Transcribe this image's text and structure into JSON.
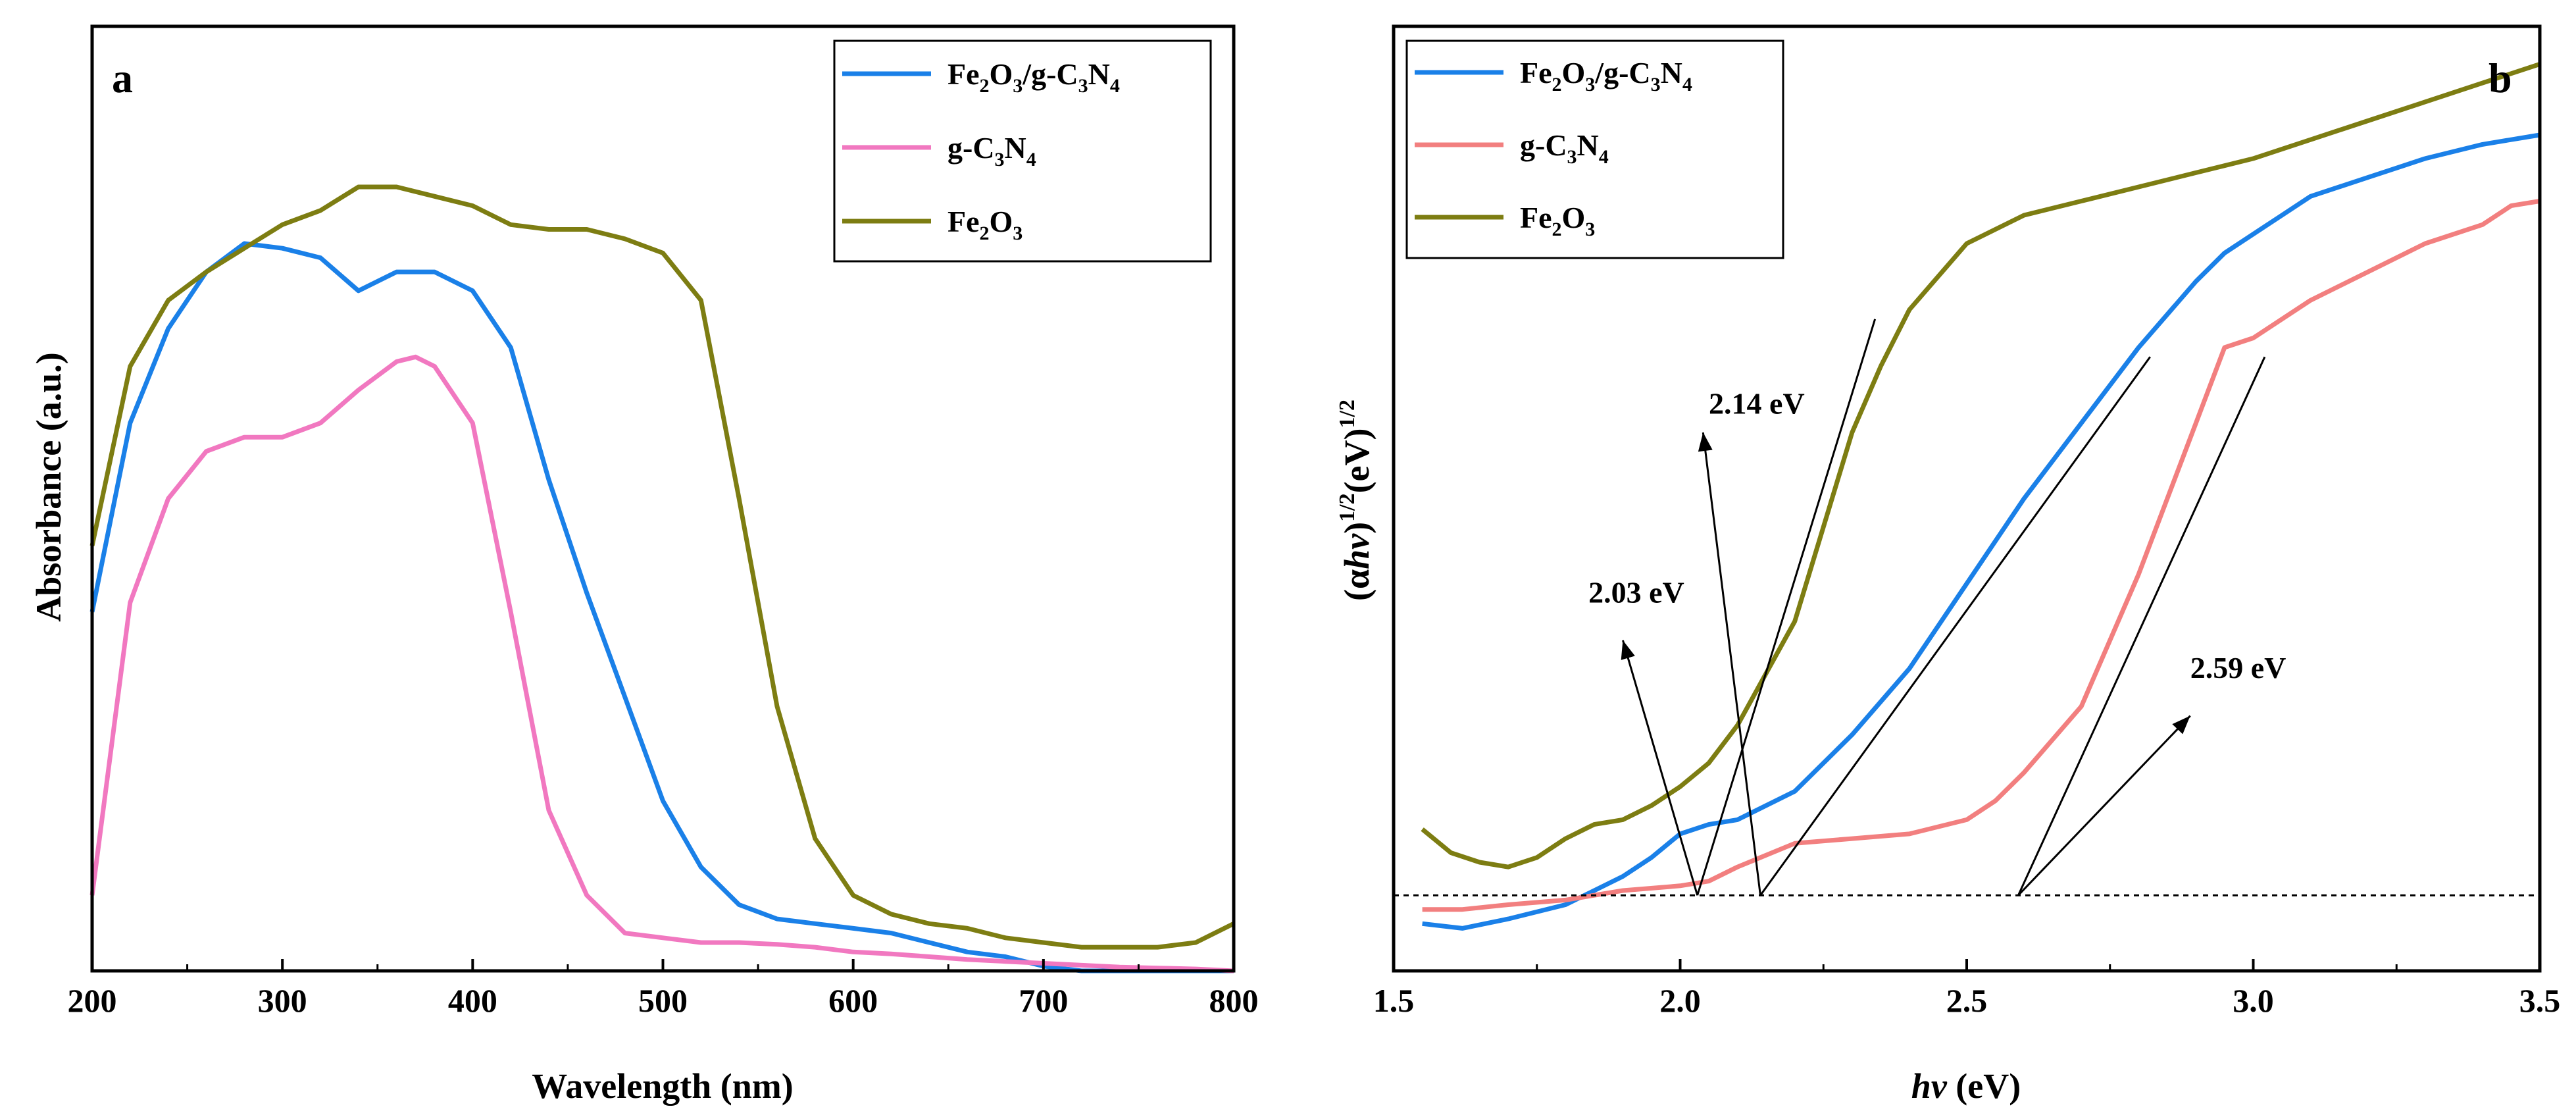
{
  "chart_data": [
    {
      "type": "line",
      "panel_label": "a",
      "xlabel": "Wavelength (nm)",
      "ylabel": "Absorbance (a.u.)",
      "xlim": [
        200,
        800
      ],
      "ylim": [
        0,
        1
      ],
      "xticks": [
        "200",
        "300",
        "400",
        "500",
        "600",
        "700",
        "800"
      ],
      "legend_position": "top-right",
      "series": [
        {
          "name": "Fe2O3/g-C3N4",
          "legend_parts": [
            {
              "t": "Fe"
            },
            {
              "t": "2",
              "sub": true
            },
            {
              "t": "O"
            },
            {
              "t": "3",
              "sub": true
            },
            {
              "t": "/g-C"
            },
            {
              "t": "3",
              "sub": true
            },
            {
              "t": "N"
            },
            {
              "t": "4",
              "sub": true
            }
          ],
          "color": "#1a80e8",
          "x": [
            200,
            220,
            240,
            260,
            280,
            300,
            320,
            340,
            360,
            380,
            400,
            420,
            440,
            460,
            480,
            500,
            520,
            540,
            560,
            580,
            600,
            620,
            640,
            660,
            680,
            700,
            720,
            740,
            760,
            780,
            800
          ],
          "y": [
            0.38,
            0.58,
            0.68,
            0.74,
            0.77,
            0.765,
            0.755,
            0.72,
            0.74,
            0.74,
            0.72,
            0.66,
            0.52,
            0.4,
            0.29,
            0.18,
            0.11,
            0.07,
            0.055,
            0.05,
            0.045,
            0.04,
            0.03,
            0.02,
            0.015,
            0.005,
            0.0,
            0.0,
            0.0,
            0.0,
            0.0
          ]
        },
        {
          "name": "g-C3N4",
          "legend_parts": [
            {
              "t": "g-C"
            },
            {
              "t": "3",
              "sub": true
            },
            {
              "t": "N"
            },
            {
              "t": "4",
              "sub": true
            }
          ],
          "color": "#f178c0",
          "x": [
            200,
            220,
            240,
            260,
            280,
            300,
            320,
            340,
            360,
            370,
            380,
            400,
            420,
            440,
            460,
            480,
            500,
            520,
            540,
            560,
            580,
            600,
            620,
            640,
            660,
            680,
            700,
            720,
            740,
            760,
            780,
            800
          ],
          "y": [
            0.08,
            0.39,
            0.5,
            0.55,
            0.565,
            0.565,
            0.58,
            0.615,
            0.645,
            0.65,
            0.64,
            0.58,
            0.38,
            0.17,
            0.08,
            0.04,
            0.035,
            0.03,
            0.03,
            0.028,
            0.025,
            0.02,
            0.018,
            0.015,
            0.012,
            0.01,
            0.008,
            0.006,
            0.004,
            0.003,
            0.002,
            0.0
          ]
        },
        {
          "name": "Fe2O3",
          "legend_parts": [
            {
              "t": "Fe"
            },
            {
              "t": "2",
              "sub": true
            },
            {
              "t": "O"
            },
            {
              "t": "3",
              "sub": true
            }
          ],
          "color": "#7d7d12",
          "x": [
            200,
            220,
            240,
            260,
            280,
            300,
            320,
            340,
            360,
            380,
            400,
            420,
            440,
            460,
            480,
            500,
            520,
            540,
            560,
            580,
            600,
            620,
            640,
            660,
            680,
            700,
            720,
            740,
            760,
            780,
            800
          ],
          "y": [
            0.45,
            0.64,
            0.71,
            0.74,
            0.765,
            0.79,
            0.805,
            0.83,
            0.83,
            0.82,
            0.81,
            0.79,
            0.785,
            0.785,
            0.775,
            0.76,
            0.71,
            0.5,
            0.28,
            0.14,
            0.08,
            0.06,
            0.05,
            0.045,
            0.035,
            0.03,
            0.025,
            0.025,
            0.025,
            0.03,
            0.05
          ]
        }
      ]
    },
    {
      "type": "line",
      "panel_label": "b",
      "xlabel": "hv (eV)",
      "ylabel": "(αhv)^1/2 (eV)^1/2",
      "xlim": [
        1.5,
        3.5
      ],
      "ylim": [
        0,
        1
      ],
      "xticks": [
        "1.5",
        "2.0",
        "2.5",
        "3.0",
        "3.5"
      ],
      "legend_position": "top-left",
      "baseline_y": 0.08,
      "series": [
        {
          "name": "Fe2O3/g-C3N4",
          "legend_parts": [
            {
              "t": "Fe"
            },
            {
              "t": "2",
              "sub": true
            },
            {
              "t": "O"
            },
            {
              "t": "3",
              "sub": true
            },
            {
              "t": "/g-C"
            },
            {
              "t": "3",
              "sub": true
            },
            {
              "t": "N"
            },
            {
              "t": "4",
              "sub": true
            }
          ],
          "color": "#1a80e8",
          "x": [
            1.55,
            1.62,
            1.7,
            1.8,
            1.9,
            1.95,
            2.0,
            2.05,
            2.1,
            2.2,
            2.3,
            2.4,
            2.5,
            2.6,
            2.7,
            2.8,
            2.9,
            2.95,
            3.05,
            3.1,
            3.2,
            3.3,
            3.4,
            3.45,
            3.5
          ],
          "y": [
            0.05,
            0.045,
            0.055,
            0.07,
            0.1,
            0.12,
            0.145,
            0.155,
            0.16,
            0.19,
            0.25,
            0.32,
            0.41,
            0.5,
            0.58,
            0.66,
            0.73,
            0.76,
            0.8,
            0.82,
            0.84,
            0.86,
            0.875,
            0.88,
            0.885
          ]
        },
        {
          "name": "g-C3N4",
          "legend_parts": [
            {
              "t": "g-C"
            },
            {
              "t": "3",
              "sub": true
            },
            {
              "t": "N"
            },
            {
              "t": "4",
              "sub": true
            }
          ],
          "color": "#f27f7f",
          "x": [
            1.55,
            1.62,
            1.7,
            1.8,
            1.9,
            2.0,
            2.05,
            2.1,
            2.2,
            2.3,
            2.4,
            2.5,
            2.55,
            2.6,
            2.7,
            2.8,
            2.9,
            2.95,
            3.0,
            3.1,
            3.2,
            3.3,
            3.4,
            3.45,
            3.5
          ],
          "y": [
            0.065,
            0.065,
            0.07,
            0.075,
            0.085,
            0.09,
            0.095,
            0.11,
            0.135,
            0.14,
            0.145,
            0.16,
            0.18,
            0.21,
            0.28,
            0.42,
            0.58,
            0.66,
            0.67,
            0.71,
            0.74,
            0.77,
            0.79,
            0.81,
            0.815
          ]
        },
        {
          "name": "Fe2O3",
          "legend_parts": [
            {
              "t": "Fe"
            },
            {
              "t": "2",
              "sub": true
            },
            {
              "t": "O"
            },
            {
              "t": "3",
              "sub": true
            }
          ],
          "color": "#7d7d12",
          "x": [
            1.55,
            1.6,
            1.65,
            1.7,
            1.75,
            1.8,
            1.85,
            1.9,
            1.95,
            2.0,
            2.05,
            2.1,
            2.2,
            2.3,
            2.35,
            2.4,
            2.5,
            2.6,
            2.7,
            2.8,
            2.9,
            3.0,
            3.1,
            3.2,
            3.3,
            3.4,
            3.5
          ],
          "y": [
            0.15,
            0.125,
            0.115,
            0.11,
            0.12,
            0.14,
            0.155,
            0.16,
            0.175,
            0.195,
            0.22,
            0.26,
            0.37,
            0.57,
            0.64,
            0.7,
            0.77,
            0.8,
            0.815,
            0.83,
            0.845,
            0.86,
            0.88,
            0.9,
            0.92,
            0.94,
            0.96
          ]
        }
      ],
      "tangent_lines": [
        {
          "color": "#000000",
          "x1": 2.03,
          "y1": 0.08,
          "x2": 2.34,
          "y2": 0.69
        },
        {
          "color": "#000000",
          "x1": 2.14,
          "y1": 0.08,
          "x2": 2.82,
          "y2": 0.65
        },
        {
          "color": "#000000",
          "x1": 2.59,
          "y1": 0.08,
          "x2": 3.02,
          "y2": 0.65
        }
      ],
      "annotations": [
        {
          "label": "2.14 eV",
          "tx": 2.05,
          "ty": 0.59,
          "ax1": 2.14,
          "ay1": 0.08,
          "ax2": 2.04,
          "ay2": 0.57
        },
        {
          "label": "2.03 eV",
          "tx": 1.84,
          "ty": 0.39,
          "ax1": 2.03,
          "ay1": 0.08,
          "ax2": 1.9,
          "ay2": 0.35
        },
        {
          "label": "2.59 eV",
          "tx": 2.89,
          "ty": 0.31,
          "ax1": 2.59,
          "ay1": 0.08,
          "ax2": 2.89,
          "ay2": 0.27
        }
      ]
    }
  ]
}
